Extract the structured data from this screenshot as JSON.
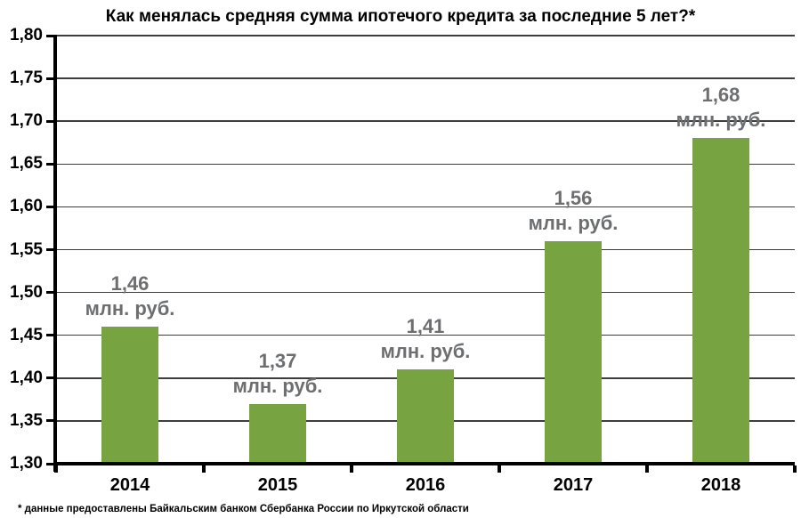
{
  "chart_data": {
    "type": "bar",
    "title": "Как менялась средняя сумма ипотечого кредита за последние 5 лет?*",
    "categories": [
      "2014",
      "2015",
      "2016",
      "2017",
      "2018"
    ],
    "values": [
      1.46,
      1.37,
      1.41,
      1.56,
      1.68
    ],
    "value_labels": [
      "1,46",
      "1,37",
      "1,41",
      "1,56",
      "1,68"
    ],
    "unit_label": "млн. руб.",
    "ylim": [
      1.3,
      1.8
    ],
    "y_tick_step": 0.05,
    "y_tick_labels": [
      "1,80",
      "1,75",
      "1,70",
      "1,65",
      "1,60",
      "1,55",
      "1,50",
      "1,45",
      "1,40",
      "1,35",
      "1,30"
    ],
    "grid": true,
    "legend": false,
    "xlabel": "",
    "ylabel": "",
    "footnote": "* данные  предоставлены Байкальским банком Сбербанка России по Иркутской области",
    "colors": {
      "bar": "#78a341",
      "data_label": "#6d6e70",
      "gridline": "#3d3d3d",
      "axis": "#000000",
      "text": "#000000",
      "background": "#ffffff"
    }
  }
}
